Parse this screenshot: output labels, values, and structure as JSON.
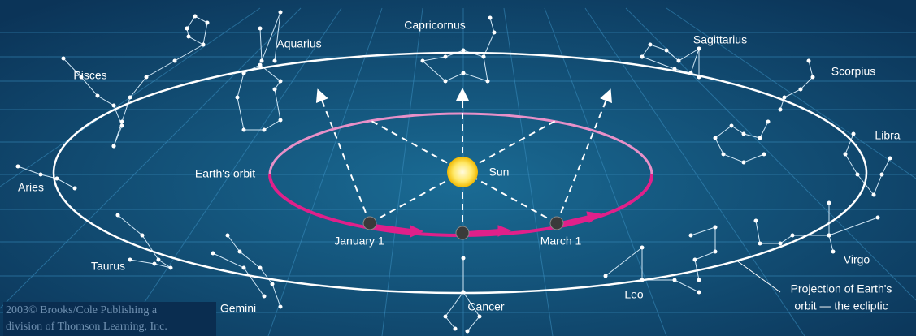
{
  "constellations": [
    "Capricornus",
    "Aquarius",
    "Sagittarius",
    "Scorpius",
    "Pisces",
    "Libra",
    "Aries",
    "Taurus",
    "Virgo",
    "Leo",
    "Gemini",
    "Cancer"
  ],
  "labels": {
    "earths_orbit": "Earth's orbit",
    "sun": "Sun",
    "january_1": "January 1",
    "march_1": "March 1",
    "ecliptic": [
      "Projection of Earth's",
      "orbit — the ecliptic"
    ]
  },
  "credit": [
    "2003© Brooks/Cole Publishing a",
    "division of Thomson Learning, Inc."
  ]
}
